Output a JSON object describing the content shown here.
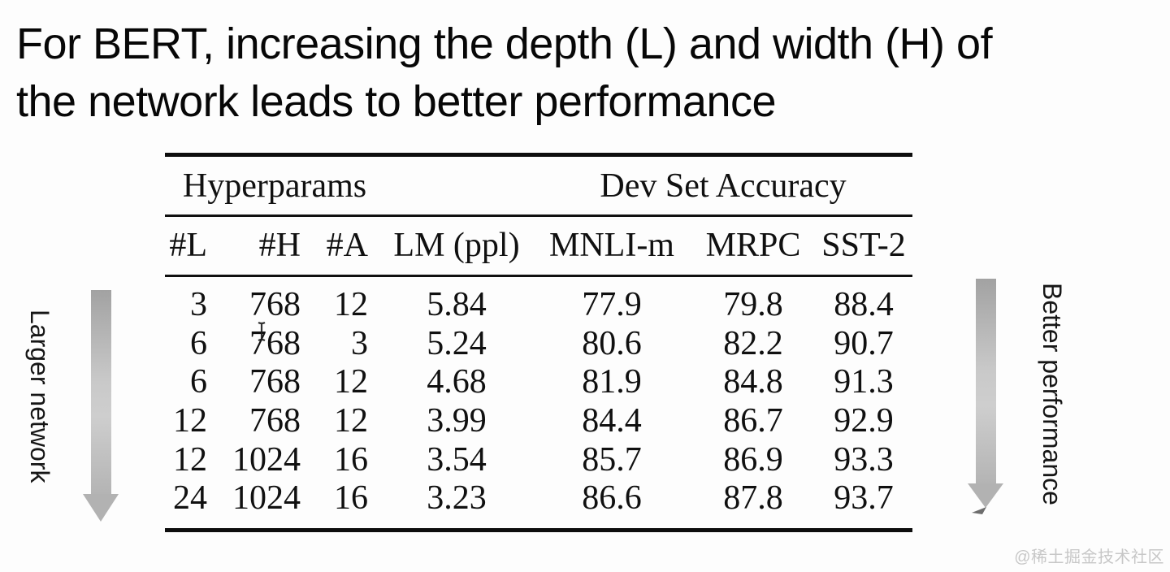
{
  "title": {
    "line1": "For BERT, increasing the depth (L) and width (H) of",
    "line2": "the network leads to better performance"
  },
  "table": {
    "group_headers": [
      "Hyperparams",
      "Dev Set Accuracy"
    ],
    "columns": [
      "#L",
      "#H",
      "#A",
      "LM (ppl)",
      "MNLI-m",
      "MRPC",
      "SST-2"
    ],
    "rows": [
      [
        "3",
        "768",
        "12",
        "5.84",
        "77.9",
        "79.8",
        "88.4"
      ],
      [
        "6",
        "768",
        "3",
        "5.24",
        "80.6",
        "82.2",
        "90.7"
      ],
      [
        "6",
        "768",
        "12",
        "4.68",
        "81.9",
        "84.8",
        "91.3"
      ],
      [
        "12",
        "768",
        "12",
        "3.99",
        "84.4",
        "86.7",
        "92.9"
      ],
      [
        "12",
        "1024",
        "16",
        "3.54",
        "85.7",
        "86.9",
        "93.3"
      ],
      [
        "24",
        "1024",
        "16",
        "3.23",
        "86.6",
        "87.8",
        "93.7"
      ]
    ]
  },
  "annotations": {
    "left_arrow_label": "Larger network",
    "right_arrow_label": "Better performance"
  },
  "watermark": "@稀土掘金技术社区",
  "colors": {
    "text": "#101010",
    "arrow_gray_top": "#a2a2a2",
    "arrow_gray_mid": "#c9c9c9",
    "arrow_gray_bottom": "#b4b4b4",
    "watermark_gray": "#c7c7c7",
    "background": "#fdfdfd"
  }
}
